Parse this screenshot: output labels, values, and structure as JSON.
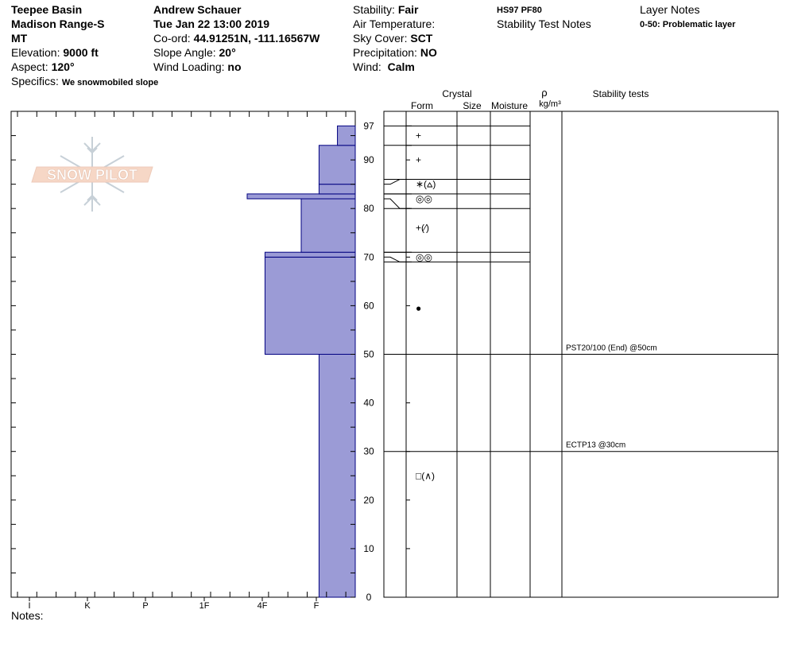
{
  "header": {
    "location": "Teepee Basin",
    "range": "Madison Range-S",
    "state": "MT",
    "elevation_label": "Elevation:",
    "elevation_value": "9000 ft",
    "aspect_label": "Aspect:",
    "aspect_value": "120°",
    "specifics_label": "Specifics:",
    "specifics_value": "We snowmobiled slope",
    "observer": "Andrew Schauer",
    "datetime": "Tue Jan 22 13:00 2019",
    "coord_label": "Co-ord:",
    "coord_value": "44.91251N, -111.16567W",
    "slope_label": "Slope Angle:",
    "slope_value": "20°",
    "wind_loading_label": "Wind Loading:",
    "wind_loading_value": "no",
    "stability_label": "Stability:",
    "stability_value": "Fair",
    "air_temp_label": "Air Temperature:",
    "sky_label": "Sky Cover:",
    "sky_value": "SCT",
    "precip_label": "Precipitation:",
    "precip_value": "NO",
    "wind_label": "Wind:",
    "wind_value": "Calm",
    "hs_pf": "HS97  PF80",
    "stability_notes_label": "Stability Test Notes",
    "layer_notes_label": "Layer Notes",
    "layer_notes_value": "0-50: Problematic layer"
  },
  "logo_text": "SNOW PILOT",
  "notes_label": "Notes:",
  "columns": {
    "crystal": "Crystal",
    "form": "Form",
    "size": "Size",
    "moisture": "Moisture",
    "rho": "ρ",
    "density_unit": "kg/m³",
    "stability_tests": "Stability tests"
  },
  "colors": {
    "hardness_fill": "#9b9bd6",
    "hardness_stroke": "#000080"
  },
  "chart_data": {
    "type": "bar",
    "title": "",
    "x_categories": [
      "I",
      "K",
      "P",
      "1F",
      "4F",
      "F"
    ],
    "x_direction": "hardness decreases to the right (F at right)",
    "y_axis": {
      "label": "",
      "ylim": [
        0,
        97
      ],
      "ticks": [
        0,
        10,
        20,
        30,
        40,
        50,
        60,
        70,
        80,
        90,
        97
      ]
    },
    "hardness_layers": [
      {
        "bottom": 0,
        "top": 50,
        "hardness": 0.67
      },
      {
        "bottom": 50,
        "top": 70,
        "hardness": 1.67
      },
      {
        "bottom": 70,
        "top": 71,
        "hardness": 1.67
      },
      {
        "bottom": 71,
        "top": 82,
        "hardness": 1.0
      },
      {
        "bottom": 82,
        "top": 83,
        "hardness": 2.0
      },
      {
        "bottom": 83,
        "top": 85,
        "hardness": 0.67
      },
      {
        "bottom": 85,
        "top": 93,
        "hardness": 0.67
      },
      {
        "bottom": 93,
        "top": 97,
        "hardness": 0.33
      }
    ],
    "layer_boundaries": [
      97,
      93,
      86,
      83,
      80,
      71,
      69,
      50
    ],
    "crystal_forms": [
      {
        "depth": 95,
        "symbol": "+"
      },
      {
        "depth": 90,
        "symbol": "+"
      },
      {
        "depth": 85,
        "symbol": "∗(⩟)"
      },
      {
        "depth": 82,
        "symbol": "◎◎"
      },
      {
        "depth": 76,
        "symbol": "+(⁄)"
      },
      {
        "depth": 70,
        "symbol": "◎◎"
      },
      {
        "depth": 59.5,
        "symbol": "●"
      },
      {
        "depth": 25,
        "symbol": "□(∧)"
      }
    ],
    "stability_tests": [
      {
        "depth": 50,
        "label": "PST20/100 (End) @50cm"
      },
      {
        "depth": 30,
        "label": "ECTP13 @30cm"
      }
    ]
  }
}
